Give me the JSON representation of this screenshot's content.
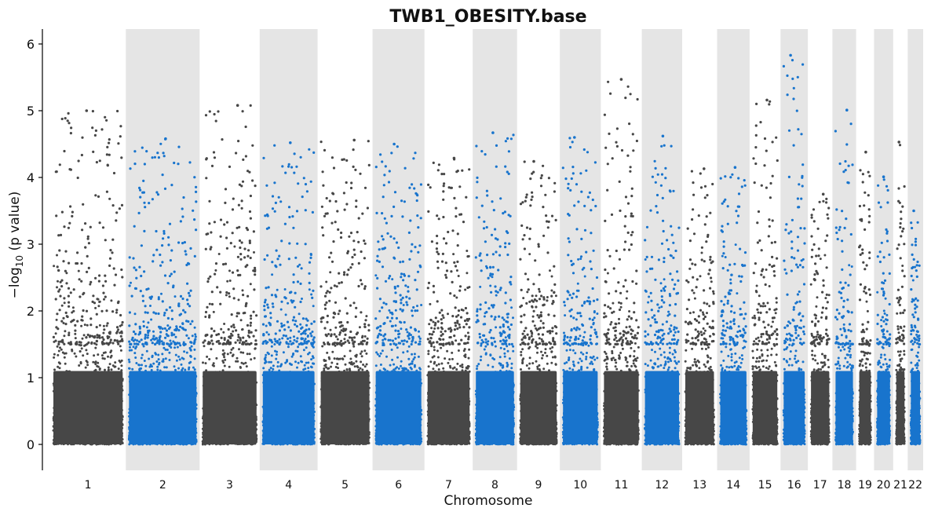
{
  "chart_data": {
    "type": "scatter",
    "subtype": "manhattan",
    "title": "TWB1_OBESITY.base",
    "xlabel": "Chromosome",
    "ylabel_main": "−log",
    "ylabel_sub": "10",
    "ylabel_rest": " (p value)",
    "ylim": [
      -0.4,
      6.25
    ],
    "yticks": [
      0,
      1,
      2,
      3,
      4,
      5,
      6
    ],
    "grid": false,
    "colors": {
      "odd": "#474747",
      "even": "#1874cd",
      "band": "#e5e5e5",
      "axis": "#000000"
    },
    "chromosomes": [
      {
        "name": "1",
        "length": 249,
        "max_log10p": 5.0
      },
      {
        "name": "2",
        "length": 243,
        "max_log10p": 4.58
      },
      {
        "name": "3",
        "length": 198,
        "max_log10p": 5.08
      },
      {
        "name": "4",
        "length": 191,
        "max_log10p": 4.52
      },
      {
        "name": "5",
        "length": 181,
        "max_log10p": 4.56
      },
      {
        "name": "6",
        "length": 171,
        "max_log10p": 4.5
      },
      {
        "name": "7",
        "length": 159,
        "max_log10p": 4.29
      },
      {
        "name": "8",
        "length": 146,
        "max_log10p": 4.67
      },
      {
        "name": "9",
        "length": 141,
        "max_log10p": 4.24
      },
      {
        "name": "10",
        "length": 135,
        "max_log10p": 4.6
      },
      {
        "name": "11",
        "length": 135,
        "max_log10p": 5.47
      },
      {
        "name": "12",
        "length": 133,
        "max_log10p": 4.62
      },
      {
        "name": "13",
        "length": 115,
        "max_log10p": 4.13
      },
      {
        "name": "14",
        "length": 107,
        "max_log10p": 4.15
      },
      {
        "name": "15",
        "length": 102,
        "max_log10p": 5.16
      },
      {
        "name": "16",
        "length": 90,
        "max_log10p": 5.83
      },
      {
        "name": "17",
        "length": 81,
        "max_log10p": 3.75
      },
      {
        "name": "18",
        "length": 78,
        "max_log10p": 5.01
      },
      {
        "name": "19",
        "length": 59,
        "max_log10p": 4.38
      },
      {
        "name": "20",
        "length": 63,
        "max_log10p": 4.01
      },
      {
        "name": "21",
        "length": 48,
        "max_log10p": 4.53
      },
      {
        "name": "22",
        "length": 51,
        "max_log10p": 3.5
      }
    ]
  }
}
